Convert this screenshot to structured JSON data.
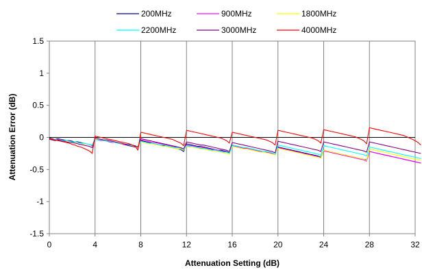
{
  "chart_data": {
    "type": "line",
    "xlabel": "Attenuation Setting (dB)",
    "ylabel": "Attenuation Error (dB)",
    "xlim": [
      0,
      32
    ],
    "ylim": [
      -1.5,
      1.5
    ],
    "x_ticks": [
      0,
      4,
      8,
      12,
      16,
      20,
      24,
      28,
      32
    ],
    "y_ticks": [
      1.5,
      1,
      0.5,
      0,
      -0.5,
      -1,
      -1.5
    ],
    "x_tick_labels": [
      "0",
      "4",
      "8",
      "12",
      "16",
      "20",
      "24",
      "28",
      "32"
    ],
    "y_tick_labels": [
      "1.5",
      "1",
      "0.5",
      "0",
      "-0.5",
      "-1",
      "-1.5"
    ],
    "grid": "vertical gridlines at x ticks",
    "legend_position": "top",
    "x_step": 0.25,
    "x_start": 0,
    "series": [
      {
        "name": "200MHz",
        "color": "#000080",
        "values": [
          -0.01,
          -0.02,
          -0.03,
          -0.02,
          -0.03,
          -0.04,
          -0.05,
          -0.05,
          -0.06,
          -0.07,
          -0.07,
          -0.08,
          -0.09,
          -0.1,
          -0.11,
          -0.12,
          -0.02,
          -0.03,
          -0.04,
          -0.05,
          -0.05,
          -0.06,
          -0.07,
          -0.08,
          -0.09,
          -0.1,
          -0.11,
          -0.12,
          -0.13,
          -0.14,
          -0.15,
          -0.16,
          -0.05,
          -0.06,
          -0.07,
          -0.08,
          -0.09,
          -0.1,
          -0.11,
          -0.12,
          -0.13,
          -0.14,
          -0.15,
          -0.16,
          -0.17,
          -0.18,
          -0.19,
          -0.22,
          -0.1,
          -0.11,
          -0.12,
          -0.13,
          -0.14,
          -0.14,
          -0.15,
          -0.16,
          -0.17,
          -0.18,
          -0.19,
          -0.2,
          -0.2,
          -0.21,
          -0.22,
          -0.24,
          -0.12,
          -0.13,
          -0.14,
          -0.15,
          -0.16,
          -0.17,
          -0.18,
          -0.19,
          -0.2,
          -0.21,
          -0.22,
          -0.22,
          -0.23,
          -0.24,
          -0.25,
          -0.27,
          -0.15,
          -0.16,
          -0.17,
          -0.18,
          -0.19,
          -0.2,
          -0.21,
          -0.22,
          -0.23,
          -0.24,
          -0.25,
          -0.26,
          -0.27,
          -0.28,
          -0.29,
          -0.31,
          -0.2,
          -0.21,
          -0.22,
          -0.23,
          -0.24,
          -0.25,
          -0.26,
          -0.27,
          -0.28,
          -0.29,
          -0.3,
          -0.31,
          -0.32,
          -0.33,
          -0.34,
          -0.35,
          -0.22,
          -0.23,
          -0.24,
          -0.25,
          -0.26,
          -0.27,
          -0.28,
          -0.29,
          -0.3,
          -0.31,
          -0.32,
          -0.33,
          -0.34,
          -0.35,
          -0.36,
          -0.37,
          -0.38,
          -0.39,
          -0.4
        ]
      },
      {
        "name": "900MHz",
        "color": "#ff00ff",
        "values": [
          -0.02,
          -0.03,
          -0.04,
          -0.03,
          -0.04,
          -0.05,
          -0.06,
          -0.06,
          -0.07,
          -0.08,
          -0.08,
          -0.09,
          -0.1,
          -0.1,
          -0.11,
          -0.13,
          -0.03,
          -0.04,
          -0.05,
          -0.05,
          -0.06,
          -0.07,
          -0.08,
          -0.08,
          -0.09,
          -0.1,
          -0.11,
          -0.11,
          -0.12,
          -0.13,
          -0.14,
          -0.17,
          -0.04,
          -0.05,
          -0.06,
          -0.07,
          -0.08,
          -0.08,
          -0.09,
          -0.1,
          -0.11,
          -0.12,
          -0.13,
          -0.14,
          -0.15,
          -0.16,
          -0.17,
          -0.19,
          -0.12,
          -0.13,
          -0.13,
          -0.14,
          -0.15,
          -0.16,
          -0.16,
          -0.17,
          -0.18,
          -0.19,
          -0.19,
          -0.2,
          -0.21,
          -0.22,
          -0.23,
          -0.25,
          -0.13,
          -0.14,
          -0.15,
          -0.16,
          -0.17,
          -0.17,
          -0.18,
          -0.19,
          -0.2,
          -0.21,
          -0.22,
          -0.22,
          -0.23,
          -0.24,
          -0.25,
          -0.27,
          -0.16,
          -0.17,
          -0.18,
          -0.19,
          -0.2,
          -0.21,
          -0.22,
          -0.23,
          -0.24,
          -0.25,
          -0.26,
          -0.27,
          -0.28,
          -0.29,
          -0.3,
          -0.32,
          -0.21,
          -0.22,
          -0.23,
          -0.24,
          -0.25,
          -0.26,
          -0.27,
          -0.28,
          -0.29,
          -0.3,
          -0.31,
          -0.32,
          -0.33,
          -0.34,
          -0.35,
          -0.37,
          -0.22,
          -0.23,
          -0.24,
          -0.25,
          -0.26,
          -0.27,
          -0.28,
          -0.29,
          -0.3,
          -0.31,
          -0.32,
          -0.33,
          -0.34,
          -0.35,
          -0.36,
          -0.37,
          -0.38,
          -0.39,
          -0.4
        ]
      },
      {
        "name": "1800MHz",
        "color": "#ffff00",
        "values": [
          -0.02,
          -0.03,
          -0.03,
          -0.04,
          -0.04,
          -0.05,
          -0.06,
          -0.06,
          -0.07,
          -0.08,
          -0.08,
          -0.09,
          -0.1,
          -0.1,
          -0.11,
          -0.12,
          -0.02,
          -0.03,
          -0.04,
          -0.05,
          -0.05,
          -0.06,
          -0.07,
          -0.08,
          -0.09,
          -0.1,
          -0.1,
          -0.11,
          -0.12,
          -0.13,
          -0.14,
          -0.16,
          -0.07,
          -0.08,
          -0.09,
          -0.1,
          -0.1,
          -0.11,
          -0.12,
          -0.13,
          -0.14,
          -0.14,
          -0.15,
          -0.16,
          -0.17,
          -0.18,
          -0.18,
          -0.2,
          -0.14,
          -0.15,
          -0.15,
          -0.16,
          -0.17,
          -0.18,
          -0.18,
          -0.19,
          -0.2,
          -0.21,
          -0.21,
          -0.22,
          -0.23,
          -0.24,
          -0.25,
          -0.26,
          -0.14,
          -0.15,
          -0.16,
          -0.17,
          -0.18,
          -0.18,
          -0.19,
          -0.2,
          -0.21,
          -0.22,
          -0.23,
          -0.23,
          -0.24,
          -0.25,
          -0.26,
          -0.27,
          -0.17,
          -0.18,
          -0.19,
          -0.2,
          -0.21,
          -0.22,
          -0.23,
          -0.24,
          -0.25,
          -0.26,
          -0.27,
          -0.28,
          -0.29,
          -0.3,
          -0.31,
          -0.32,
          -0.2,
          -0.21,
          -0.22,
          -0.23,
          -0.24,
          -0.25,
          -0.26,
          -0.27,
          -0.28,
          -0.29,
          -0.3,
          -0.31,
          -0.32,
          -0.33,
          -0.34,
          -0.36,
          -0.18,
          -0.19,
          -0.2,
          -0.21,
          -0.22,
          -0.23,
          -0.24,
          -0.25,
          -0.26,
          -0.27,
          -0.28,
          -0.29,
          -0.3,
          -0.31,
          -0.32,
          -0.33,
          -0.34,
          -0.35,
          -0.36
        ]
      },
      {
        "name": "2200MHz",
        "color": "#00ffff",
        "values": [
          -0.02,
          -0.03,
          -0.03,
          -0.04,
          -0.04,
          -0.05,
          -0.05,
          -0.06,
          -0.07,
          -0.07,
          -0.08,
          -0.09,
          -0.09,
          -0.1,
          -0.11,
          -0.12,
          -0.03,
          -0.04,
          -0.04,
          -0.05,
          -0.06,
          -0.06,
          -0.07,
          -0.08,
          -0.09,
          -0.09,
          -0.1,
          -0.11,
          -0.12,
          -0.12,
          -0.13,
          -0.15,
          -0.06,
          -0.07,
          -0.08,
          -0.09,
          -0.09,
          -0.1,
          -0.11,
          -0.12,
          -0.12,
          -0.13,
          -0.14,
          -0.15,
          -0.16,
          -0.16,
          -0.17,
          -0.19,
          -0.13,
          -0.14,
          -0.14,
          -0.15,
          -0.16,
          -0.17,
          -0.17,
          -0.18,
          -0.19,
          -0.2,
          -0.2,
          -0.21,
          -0.22,
          -0.23,
          -0.23,
          -0.25,
          -0.12,
          -0.13,
          -0.14,
          -0.15,
          -0.16,
          -0.16,
          -0.17,
          -0.18,
          -0.19,
          -0.2,
          -0.21,
          -0.22,
          -0.22,
          -0.23,
          -0.24,
          -0.26,
          -0.12,
          -0.13,
          -0.14,
          -0.15,
          -0.16,
          -0.17,
          -0.18,
          -0.19,
          -0.2,
          -0.21,
          -0.22,
          -0.23,
          -0.24,
          -0.25,
          -0.26,
          -0.28,
          -0.13,
          -0.14,
          -0.15,
          -0.16,
          -0.17,
          -0.18,
          -0.19,
          -0.2,
          -0.21,
          -0.22,
          -0.23,
          -0.24,
          -0.25,
          -0.26,
          -0.27,
          -0.29,
          -0.15,
          -0.16,
          -0.17,
          -0.18,
          -0.19,
          -0.2,
          -0.21,
          -0.22,
          -0.23,
          -0.24,
          -0.25,
          -0.26,
          -0.27,
          -0.28,
          -0.29,
          -0.3,
          -0.31,
          -0.32,
          -0.33
        ]
      },
      {
        "name": "3000MHz",
        "color": "#800080",
        "values": [
          -0.03,
          -0.04,
          -0.05,
          -0.04,
          -0.05,
          -0.06,
          -0.07,
          -0.08,
          -0.08,
          -0.09,
          -0.1,
          -0.11,
          -0.12,
          -0.13,
          -0.14,
          -0.16,
          -0.01,
          -0.02,
          -0.03,
          -0.04,
          -0.04,
          -0.05,
          -0.06,
          -0.07,
          -0.08,
          -0.09,
          -0.1,
          -0.11,
          -0.11,
          -0.12,
          -0.13,
          -0.15,
          -0.02,
          -0.03,
          -0.04,
          -0.05,
          -0.06,
          -0.07,
          -0.08,
          -0.09,
          -0.1,
          -0.11,
          -0.12,
          -0.13,
          -0.14,
          -0.15,
          -0.16,
          -0.18,
          -0.07,
          -0.08,
          -0.09,
          -0.1,
          -0.11,
          -0.12,
          -0.12,
          -0.13,
          -0.14,
          -0.15,
          -0.16,
          -0.17,
          -0.18,
          -0.19,
          -0.2,
          -0.22,
          -0.08,
          -0.09,
          -0.1,
          -0.11,
          -0.12,
          -0.13,
          -0.14,
          -0.15,
          -0.16,
          -0.17,
          -0.18,
          -0.19,
          -0.2,
          -0.21,
          -0.22,
          -0.24,
          -0.06,
          -0.07,
          -0.08,
          -0.09,
          -0.1,
          -0.11,
          -0.12,
          -0.13,
          -0.14,
          -0.15,
          -0.16,
          -0.17,
          -0.18,
          -0.19,
          -0.2,
          -0.22,
          -0.07,
          -0.08,
          -0.09,
          -0.1,
          -0.11,
          -0.12,
          -0.13,
          -0.14,
          -0.15,
          -0.16,
          -0.17,
          -0.18,
          -0.19,
          -0.2,
          -0.21,
          -0.23,
          -0.07,
          -0.08,
          -0.09,
          -0.1,
          -0.11,
          -0.12,
          -0.13,
          -0.14,
          -0.15,
          -0.16,
          -0.17,
          -0.18,
          -0.19,
          -0.2,
          -0.21,
          -0.22,
          -0.23,
          -0.24,
          -0.25
        ]
      },
      {
        "name": "4000MHz",
        "color": "#ff0000",
        "values": [
          -0.02,
          -0.03,
          -0.04,
          -0.05,
          -0.06,
          -0.07,
          -0.08,
          -0.09,
          -0.11,
          -0.12,
          -0.14,
          -0.15,
          -0.17,
          -0.19,
          -0.21,
          -0.25,
          0.02,
          0.01,
          0.0,
          -0.01,
          -0.02,
          -0.03,
          -0.04,
          -0.05,
          -0.06,
          -0.07,
          -0.08,
          -0.09,
          -0.1,
          -0.12,
          -0.14,
          -0.2,
          0.08,
          0.07,
          0.06,
          0.05,
          0.04,
          0.03,
          0.02,
          0.01,
          0.0,
          -0.01,
          -0.02,
          -0.03,
          -0.05,
          -0.07,
          -0.09,
          -0.13,
          0.11,
          0.1,
          0.09,
          0.08,
          0.07,
          0.06,
          0.05,
          0.04,
          0.03,
          0.02,
          0.01,
          0.0,
          -0.01,
          -0.03,
          -0.05,
          -0.09,
          0.08,
          0.07,
          0.06,
          0.05,
          0.04,
          0.03,
          0.02,
          0.01,
          0.0,
          -0.01,
          -0.02,
          -0.03,
          -0.04,
          -0.06,
          -0.08,
          -0.12,
          0.11,
          0.1,
          0.09,
          0.08,
          0.07,
          0.06,
          0.05,
          0.04,
          0.03,
          0.02,
          0.01,
          0.0,
          -0.01,
          -0.03,
          -0.05,
          -0.09,
          0.12,
          0.11,
          0.1,
          0.09,
          0.08,
          0.07,
          0.06,
          0.05,
          0.04,
          0.03,
          0.02,
          0.01,
          -0.01,
          -0.03,
          -0.05,
          -0.1,
          0.15,
          0.14,
          0.13,
          0.12,
          0.11,
          0.1,
          0.09,
          0.08,
          0.07,
          0.06,
          0.05,
          0.04,
          0.03,
          0.01,
          -0.01,
          -0.03,
          -0.05,
          -0.08,
          -0.12
        ]
      }
    ]
  }
}
